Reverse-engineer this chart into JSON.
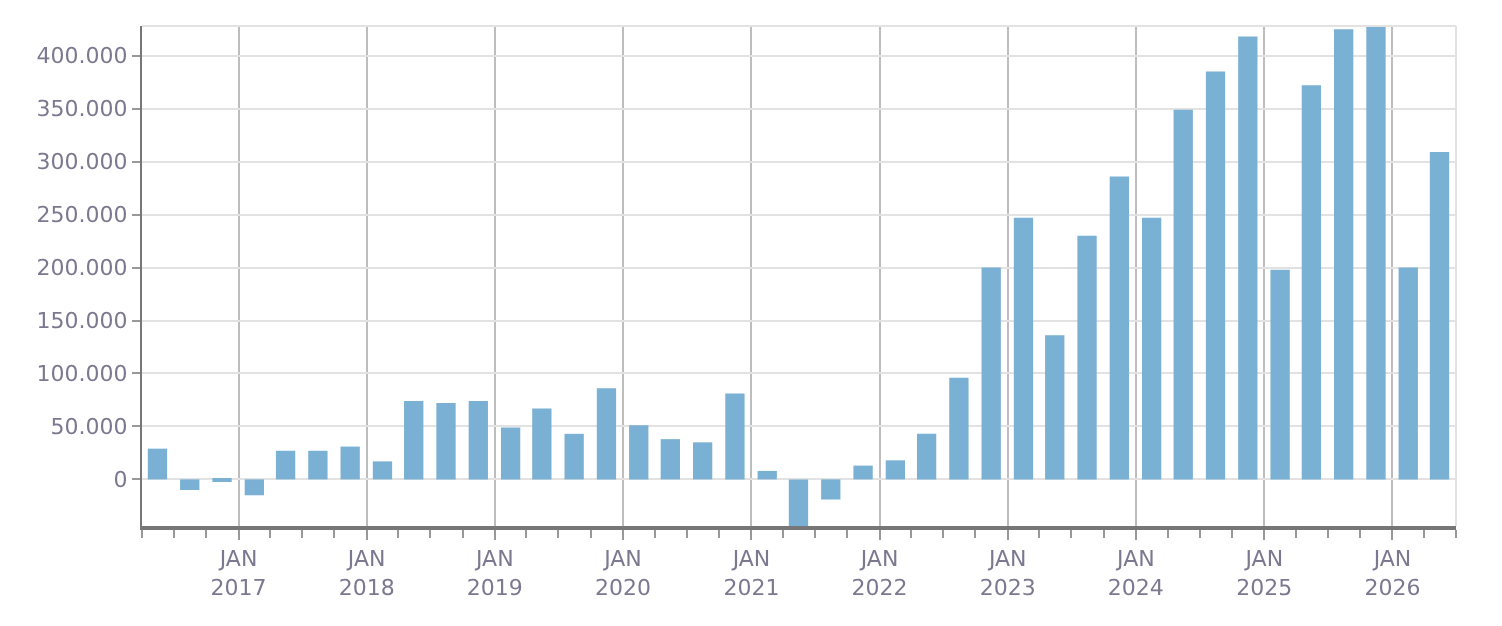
{
  "chart_data": {
    "type": "bar",
    "x": [
      "2016-05-15",
      "2016-08-15",
      "2016-11-15",
      "2017-02-15",
      "2017-05-15",
      "2017-08-15",
      "2017-11-15",
      "2018-02-15",
      "2018-05-15",
      "2018-08-15",
      "2018-11-15",
      "2019-02-15",
      "2019-05-15",
      "2019-08-15",
      "2019-11-15",
      "2020-02-15",
      "2020-05-15",
      "2020-08-15",
      "2020-11-15",
      "2021-02-15",
      "2021-05-15",
      "2021-08-15",
      "2021-11-15",
      "2022-02-15",
      "2022-05-15",
      "2022-08-15",
      "2022-11-15",
      "2023-02-15",
      "2023-05-15",
      "2023-08-15",
      "2023-11-15",
      "2024-02-15",
      "2024-05-15",
      "2024-08-15",
      "2024-11-15",
      "2025-02-15",
      "2025-05-15",
      "2025-08-15",
      "2025-11-15",
      "2026-02-15",
      "2026-05-15"
    ],
    "series": [
      {
        "color": "#79b0d3",
        "values": [
          29000,
          -10000,
          -2000,
          -15000,
          27000,
          27000,
          31000,
          17000,
          74000,
          72000,
          74000,
          49000,
          67000,
          43000,
          86000,
          51000,
          38000,
          35000,
          81000,
          8000,
          -44000,
          -19000,
          13000,
          18000,
          43000,
          96000,
          200000,
          247000,
          136000,
          230000,
          286000,
          247000,
          349000,
          385000,
          418000,
          198000,
          372000,
          425000,
          427000,
          200000,
          309000
        ]
      }
    ],
    "xlim": [
      "2016-04-01",
      "2026-07-01"
    ],
    "xticks": [
      {
        "value": "2017-01",
        "label": "JAN\n2017"
      },
      {
        "value": "2018-01",
        "label": "JAN\n2018"
      },
      {
        "value": "2019-01",
        "label": "JAN\n2019"
      },
      {
        "value": "2020-01",
        "label": "JAN\n2020"
      },
      {
        "value": "2021-01",
        "label": "JAN\n2021"
      },
      {
        "value": "2022-01",
        "label": "JAN\n2022"
      },
      {
        "value": "2023-01",
        "label": "JAN\n2023"
      },
      {
        "value": "2024-01",
        "label": "JAN\n2024"
      },
      {
        "value": "2025-01",
        "label": "JAN\n2025"
      },
      {
        "value": "2026-01",
        "label": "JAN\n2026"
      }
    ],
    "ylim": [
      -44000,
      428000
    ],
    "yticks": [
      0,
      {
        "value": 50000,
        "label": "50.000"
      },
      {
        "value": 100000,
        "label": "100.000"
      },
      {
        "value": 150000,
        "label": "150.000"
      },
      {
        "value": 200000,
        "label": "200.000"
      },
      {
        "value": 250000,
        "label": "250.000"
      },
      {
        "value": 300000,
        "label": "300.000"
      },
      {
        "value": 350000,
        "label": "350.000"
      },
      {
        "value": 400000,
        "label": "400.000"
      }
    ],
    "grid": true
  }
}
